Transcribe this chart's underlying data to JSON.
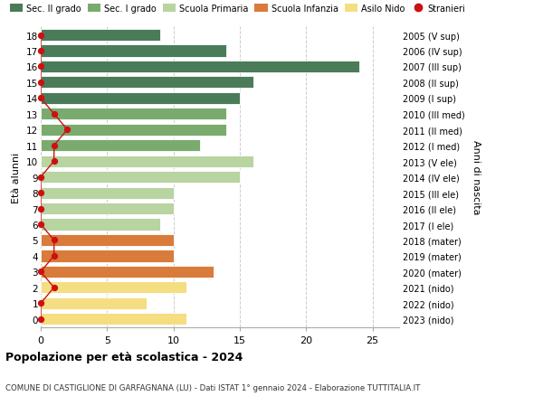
{
  "ages": [
    18,
    17,
    16,
    15,
    14,
    13,
    12,
    11,
    10,
    9,
    8,
    7,
    6,
    5,
    4,
    3,
    2,
    1,
    0
  ],
  "right_labels": [
    "2005 (V sup)",
    "2006 (IV sup)",
    "2007 (III sup)",
    "2008 (II sup)",
    "2009 (I sup)",
    "2010 (III med)",
    "2011 (II med)",
    "2012 (I med)",
    "2013 (V ele)",
    "2014 (IV ele)",
    "2015 (III ele)",
    "2016 (II ele)",
    "2017 (I ele)",
    "2018 (mater)",
    "2019 (mater)",
    "2020 (mater)",
    "2021 (nido)",
    "2022 (nido)",
    "2023 (nido)"
  ],
  "bar_values": [
    9,
    14,
    24,
    16,
    15,
    14,
    14,
    12,
    16,
    15,
    10,
    10,
    9,
    10,
    10,
    13,
    11,
    8,
    11
  ],
  "bar_colors": [
    "#4a7c59",
    "#4a7c59",
    "#4a7c59",
    "#4a7c59",
    "#4a7c59",
    "#7aab6e",
    "#7aab6e",
    "#7aab6e",
    "#b8d4a0",
    "#b8d4a0",
    "#b8d4a0",
    "#b8d4a0",
    "#b8d4a0",
    "#d97b3a",
    "#d97b3a",
    "#d97b3a",
    "#f5dd82",
    "#f5dd82",
    "#f5dd82"
  ],
  "stranieri_values": [
    0,
    0,
    0,
    0,
    0,
    1,
    2,
    1,
    1,
    0,
    0,
    0,
    0,
    1,
    1,
    0,
    1,
    0,
    0
  ],
  "legend_labels": [
    "Sec. II grado",
    "Sec. I grado",
    "Scuola Primaria",
    "Scuola Infanzia",
    "Asilo Nido",
    "Stranieri"
  ],
  "legend_colors": [
    "#4a7c59",
    "#7aab6e",
    "#b8d4a0",
    "#d97b3a",
    "#f5dd82",
    "#cc1111"
  ],
  "ylabel": "Età alunni",
  "ylabel_right": "Anni di nascita",
  "title": "Popolazione per età scolastica - 2024",
  "subtitle": "COMUNE DI CASTIGLIONE DI GARFAGNANA (LU) - Dati ISTAT 1° gennaio 2024 - Elaborazione TUTTITALIA.IT",
  "xlim": [
    0,
    27
  ],
  "grid_color": "#cccccc",
  "background_color": "#ffffff",
  "bar_height": 0.75
}
